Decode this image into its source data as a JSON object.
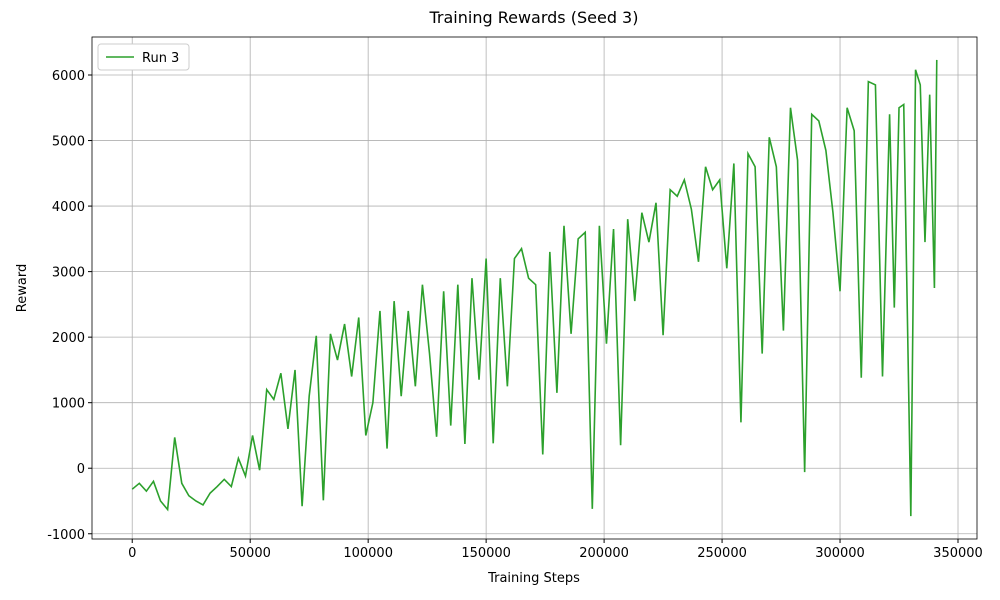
{
  "chart_data": {
    "type": "line",
    "title": "Training Rewards (Seed 3)",
    "x_label": "Training Steps",
    "y_label": "Reward",
    "x": [
      0,
      3000,
      6000,
      9000,
      12000,
      15000,
      18000,
      21000,
      24000,
      27000,
      30000,
      33000,
      36000,
      39000,
      42000,
      45000,
      48000,
      51000,
      54000,
      57000,
      60000,
      63000,
      66000,
      69000,
      72000,
      75000,
      78000,
      81000,
      84000,
      87000,
      90000,
      93000,
      96000,
      99000,
      102000,
      105000,
      108000,
      111000,
      114000,
      117000,
      120000,
      123000,
      126000,
      129000,
      132000,
      135000,
      138000,
      141000,
      144000,
      147000,
      150000,
      153000,
      156000,
      159000,
      162000,
      165000,
      168000,
      171000,
      174000,
      177000,
      180000,
      183000,
      186000,
      189000,
      192000,
      195000,
      198000,
      201000,
      204000,
      207000,
      210000,
      213000,
      216000,
      219000,
      222000,
      225000,
      228000,
      231000,
      234000,
      237000,
      240000,
      243000,
      246000,
      249000,
      252000,
      255000,
      258000,
      261000,
      264000,
      267000,
      270000,
      273000,
      276000,
      279000,
      282000,
      285000,
      288000,
      291000,
      294000,
      297000,
      300000,
      303000,
      306000,
      309000,
      312000,
      315000,
      318000,
      321000,
      323000,
      325000,
      327000,
      330000,
      332000,
      334000,
      336000,
      338000,
      340000,
      341000
    ],
    "series": [
      {
        "name": "Run 3",
        "color": "#2ca02c",
        "values": [
          -320,
          -230,
          -350,
          -200,
          -500,
          -630,
          470,
          -230,
          -420,
          -500,
          -560,
          -380,
          -280,
          -170,
          -280,
          150,
          -120,
          500,
          -30,
          1200,
          1050,
          1450,
          600,
          1500,
          -580,
          1100,
          2020,
          -490,
          2050,
          1650,
          2200,
          1400,
          2300,
          500,
          1000,
          2400,
          300,
          2550,
          1100,
          2400,
          1250,
          2800,
          1750,
          480,
          2700,
          650,
          2800,
          370,
          2900,
          1350,
          3200,
          380,
          2900,
          1250,
          3200,
          3350,
          2900,
          2800,
          210,
          3300,
          1150,
          3700,
          2050,
          3500,
          3600,
          -620,
          3700,
          1900,
          3650,
          350,
          3800,
          2550,
          3900,
          3450,
          4050,
          2030,
          4250,
          4150,
          4400,
          3950,
          3150,
          4600,
          4250,
          4400,
          3050,
          4650,
          700,
          4800,
          4600,
          1750,
          5050,
          4600,
          2100,
          5500,
          4700,
          -60,
          5400,
          5300,
          4850,
          3900,
          2700,
          5500,
          5150,
          1380,
          5900,
          5850,
          1400,
          5400,
          2450,
          5500,
          5550,
          -730,
          6080,
          5850,
          3450,
          5700,
          2750,
          6230
        ]
      }
    ],
    "xlim": [
      -17050,
      358050
    ],
    "ylim": [
      -1080,
      6580
    ],
    "xticks": [
      0,
      50000,
      100000,
      150000,
      200000,
      250000,
      300000,
      350000
    ],
    "yticks": [
      -1000,
      0,
      1000,
      2000,
      3000,
      4000,
      5000,
      6000
    ],
    "grid": true,
    "legend": "upper left"
  }
}
